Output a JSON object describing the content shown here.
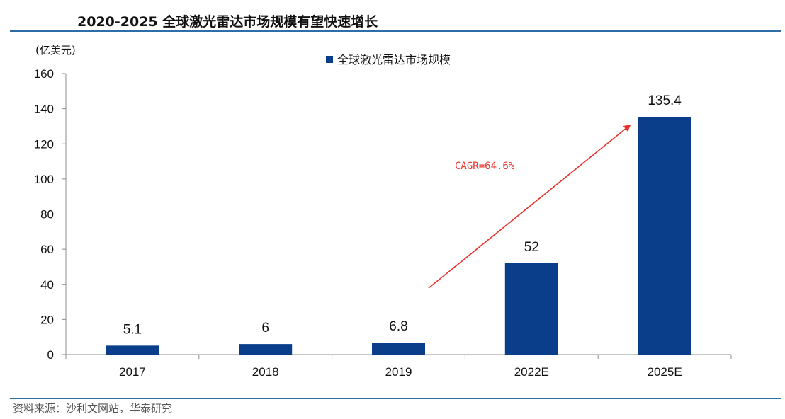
{
  "header": {
    "title": "2020-2025 全球激光雷达市场规模有望快速增长"
  },
  "footer": {
    "source": "资料来源：沙利文网站，华泰研究"
  },
  "chart_data": {
    "type": "bar",
    "title": "2020-2025 全球激光雷达市场规模有望快速增长",
    "ylabel": "(亿美元)",
    "xlabel": "",
    "categories": [
      "2017",
      "2018",
      "2019",
      "2022E",
      "2025E"
    ],
    "series": [
      {
        "name": "全球激光雷达市场规模",
        "values": [
          5.1,
          6,
          6.8,
          52,
          135.4
        ],
        "color": "#0b3e8a"
      }
    ],
    "data_labels": [
      "5.1",
      "6",
      "6.8",
      "52",
      "135.4"
    ],
    "ylim": [
      0,
      160
    ],
    "yticks": [
      0,
      20,
      40,
      60,
      80,
      100,
      120,
      140,
      160
    ],
    "grid": false,
    "legend_position": "top-center",
    "annotation": {
      "text": "CAGR=64.6%",
      "color": "#e8322b",
      "arrow": true
    }
  }
}
